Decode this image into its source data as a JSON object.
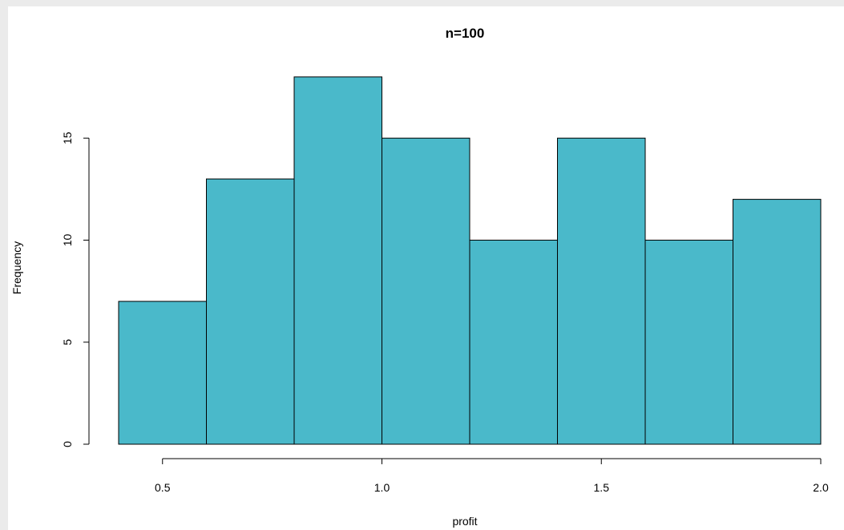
{
  "chart_data": {
    "type": "bar",
    "title": "n=100",
    "xlabel": "profit",
    "ylabel": "Frequency",
    "bins": [
      {
        "from": 0.4,
        "to": 0.6,
        "count": 7
      },
      {
        "from": 0.6,
        "to": 0.8,
        "count": 13
      },
      {
        "from": 0.8,
        "to": 1.0,
        "count": 18
      },
      {
        "from": 1.0,
        "to": 1.2,
        "count": 15
      },
      {
        "from": 1.2,
        "to": 1.4,
        "count": 10
      },
      {
        "from": 1.4,
        "to": 1.6,
        "count": 15
      },
      {
        "from": 1.6,
        "to": 1.8,
        "count": 10
      },
      {
        "from": 1.8,
        "to": 2.0,
        "count": 12
      }
    ],
    "xlim": [
      0.4,
      2.0
    ],
    "ylim": [
      0,
      18
    ],
    "x_ticks": [
      {
        "value": 0.5,
        "label": "0.5"
      },
      {
        "value": 1.0,
        "label": "1.0"
      },
      {
        "value": 1.5,
        "label": "1.5"
      },
      {
        "value": 2.0,
        "label": "2.0"
      }
    ],
    "y_ticks": [
      {
        "value": 0,
        "label": "0"
      },
      {
        "value": 5,
        "label": "5"
      },
      {
        "value": 10,
        "label": "10"
      },
      {
        "value": 15,
        "label": "15"
      }
    ],
    "bar_color": "#4ab9ca",
    "grid": false
  }
}
